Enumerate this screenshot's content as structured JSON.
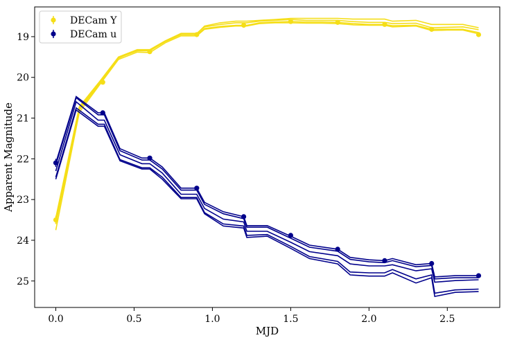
{
  "chart_data": {
    "type": "line",
    "xlabel": "MJD",
    "ylabel": "Apparent Magnitude",
    "xlim": [
      -0.135,
      2.835
    ],
    "ylim": [
      25.65,
      18.27
    ],
    "y_inverted": true,
    "xticks": [
      0.0,
      0.5,
      1.0,
      1.5,
      2.0,
      2.5
    ],
    "xtick_labels": [
      "0.0",
      "0.5",
      "1.0",
      "1.5",
      "2.0",
      "2.5"
    ],
    "yticks": [
      19,
      20,
      21,
      22,
      23,
      24,
      25
    ],
    "ytick_labels": [
      "19",
      "20",
      "21",
      "22",
      "23",
      "24",
      "25"
    ],
    "legend_position": "top-left",
    "grid": false,
    "series": [
      {
        "name": "DECam Y",
        "color": "#f5de17",
        "markers": {
          "x": [
            0.0,
            0.3,
            0.6,
            0.9,
            1.2,
            1.5,
            1.8,
            2.1,
            2.4,
            2.7
          ],
          "y": [
            23.5,
            20.12,
            19.37,
            18.95,
            18.72,
            18.63,
            18.65,
            18.7,
            18.82,
            18.95
          ],
          "err": [
            0.1,
            0.03,
            0.05,
            0.05,
            0.05,
            0.04,
            0.04,
            0.04,
            0.04,
            0.05
          ]
        },
        "model_x": [
          0.0,
          0.15,
          0.28,
          0.4,
          0.52,
          0.6,
          0.7,
          0.8,
          0.9,
          0.95,
          1.05,
          1.15,
          1.22,
          1.3,
          1.4,
          1.5,
          1.6,
          1.7,
          1.8,
          1.9,
          2.0,
          2.1,
          2.15,
          2.3,
          2.4,
          2.5,
          2.6,
          2.7
        ],
        "model_lines": [
          [
            23.6,
            20.8,
            20.15,
            19.52,
            19.35,
            19.35,
            19.12,
            18.95,
            18.95,
            18.8,
            18.75,
            18.72,
            18.72,
            18.66,
            18.64,
            18.63,
            18.64,
            18.64,
            18.65,
            18.68,
            18.7,
            18.7,
            18.73,
            18.72,
            18.82,
            18.82,
            18.82,
            18.9
          ],
          [
            23.45,
            20.72,
            20.1,
            19.5,
            19.32,
            19.32,
            19.1,
            18.92,
            18.92,
            18.76,
            18.7,
            18.66,
            18.66,
            18.62,
            18.6,
            18.58,
            18.6,
            18.6,
            18.6,
            18.63,
            18.65,
            18.65,
            18.68,
            18.67,
            18.78,
            18.77,
            18.76,
            18.83
          ],
          [
            23.75,
            20.86,
            20.18,
            19.56,
            19.38,
            19.39,
            19.15,
            18.98,
            18.98,
            18.82,
            18.77,
            18.74,
            18.74,
            18.68,
            18.66,
            18.66,
            18.67,
            18.67,
            18.68,
            18.71,
            18.72,
            18.72,
            18.76,
            18.74,
            18.85,
            18.84,
            18.84,
            18.93
          ],
          [
            23.55,
            20.76,
            20.13,
            19.53,
            19.33,
            19.34,
            19.11,
            18.93,
            18.93,
            18.74,
            18.66,
            18.62,
            18.62,
            18.6,
            18.58,
            18.55,
            18.55,
            18.55,
            18.55,
            18.57,
            18.57,
            18.57,
            18.62,
            18.6,
            18.7,
            18.7,
            18.7,
            18.78
          ]
        ]
      },
      {
        "name": "DECam u",
        "color": "#00008b",
        "markers": {
          "x": [
            0.0,
            0.3,
            0.6,
            0.9,
            1.2,
            1.5,
            1.8,
            2.1,
            2.4,
            2.7
          ],
          "y": [
            22.1,
            20.87,
            21.98,
            22.72,
            23.42,
            23.88,
            24.22,
            24.5,
            24.57,
            24.87
          ],
          "err": [
            0.1,
            0.05,
            0.04,
            0.05,
            0.05,
            0.04,
            0.05,
            0.04,
            0.05,
            0.05
          ]
        },
        "model_x": [
          0.0,
          0.13,
          0.27,
          0.31,
          0.41,
          0.55,
          0.6,
          0.68,
          0.8,
          0.9,
          0.95,
          1.07,
          1.2,
          1.22,
          1.35,
          1.5,
          1.62,
          1.8,
          1.88,
          2.0,
          2.1,
          2.15,
          2.3,
          2.4,
          2.42,
          2.55,
          2.7
        ],
        "model_lines": [
          [
            22.1,
            20.47,
            20.87,
            20.87,
            21.75,
            21.98,
            21.98,
            22.2,
            22.72,
            22.72,
            23.07,
            23.3,
            23.42,
            23.64,
            23.64,
            23.9,
            24.12,
            24.22,
            24.42,
            24.48,
            24.5,
            24.45,
            24.6,
            24.57,
            24.9,
            24.87,
            24.87
          ],
          [
            22.15,
            20.5,
            20.92,
            20.92,
            21.8,
            22.03,
            22.03,
            22.25,
            22.77,
            22.77,
            23.12,
            23.35,
            23.47,
            23.68,
            23.68,
            23.95,
            24.17,
            24.27,
            24.47,
            24.53,
            24.55,
            24.5,
            24.65,
            24.62,
            24.95,
            24.92,
            24.92
          ],
          [
            22.3,
            20.6,
            21.05,
            21.05,
            21.9,
            22.12,
            22.12,
            22.35,
            22.87,
            22.87,
            23.22,
            23.48,
            23.55,
            23.78,
            23.78,
            24.05,
            24.28,
            24.38,
            24.58,
            24.63,
            24.63,
            24.6,
            24.75,
            24.7,
            25.03,
            24.99,
            24.97
          ],
          [
            22.45,
            20.75,
            21.15,
            21.15,
            22.02,
            22.22,
            22.22,
            22.45,
            22.95,
            22.95,
            23.32,
            23.6,
            23.65,
            23.88,
            23.86,
            24.15,
            24.4,
            24.52,
            24.78,
            24.8,
            24.8,
            24.72,
            24.95,
            24.85,
            25.3,
            25.22,
            25.2
          ],
          [
            22.5,
            20.8,
            21.2,
            21.2,
            22.05,
            22.25,
            22.25,
            22.5,
            22.98,
            22.98,
            23.35,
            23.65,
            23.7,
            23.93,
            23.9,
            24.2,
            24.45,
            24.58,
            24.85,
            24.88,
            24.88,
            24.8,
            25.05,
            24.92,
            25.38,
            25.28,
            25.26
          ]
        ]
      }
    ]
  }
}
